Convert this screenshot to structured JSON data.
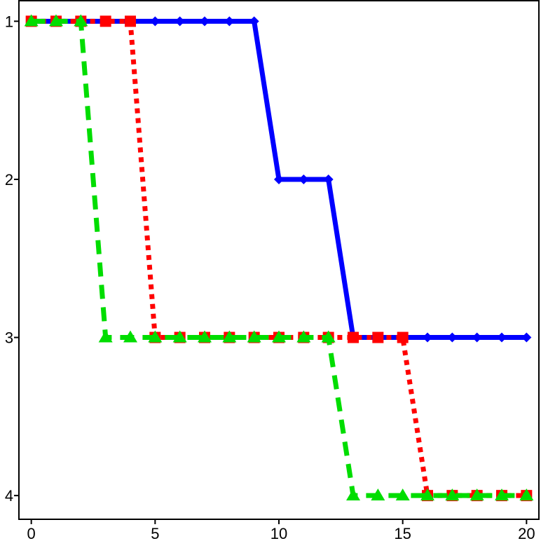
{
  "chart_data": {
    "type": "line",
    "title": "",
    "xlabel": "",
    "ylabel": "",
    "x": [
      0,
      1,
      2,
      3,
      4,
      5,
      6,
      7,
      8,
      9,
      10,
      11,
      12,
      13,
      14,
      15,
      16,
      17,
      18,
      19,
      20
    ],
    "xlim": [
      -0.5,
      20.5
    ],
    "ylim": [
      4.15,
      0.87
    ],
    "y_inverted": true,
    "xticks": [
      0,
      5,
      10,
      15,
      20
    ],
    "yticks": [
      1,
      2,
      3,
      4
    ],
    "grid": false,
    "legend": "none",
    "series": [
      {
        "color": "#0000ff",
        "line_style": "solid",
        "marker": "diamond",
        "values": [
          1,
          1,
          1,
          1,
          1,
          1,
          1,
          1,
          1,
          1,
          2,
          2,
          2,
          3,
          3,
          3,
          3,
          3,
          3,
          3,
          3
        ]
      },
      {
        "color": "#ff0000",
        "line_style": "dotted",
        "marker": "square",
        "values": [
          1,
          1,
          1,
          1,
          1,
          3,
          3,
          3,
          3,
          3,
          3,
          3,
          3,
          3,
          3,
          3,
          4,
          4,
          4,
          4,
          4
        ]
      },
      {
        "color": "#00dd00",
        "line_style": "dashed",
        "marker": "triangle",
        "values": [
          1,
          1,
          1,
          3,
          3,
          3,
          3,
          3,
          3,
          3,
          3,
          3,
          3,
          4,
          4,
          4,
          4,
          4,
          4,
          4,
          4
        ]
      }
    ]
  }
}
